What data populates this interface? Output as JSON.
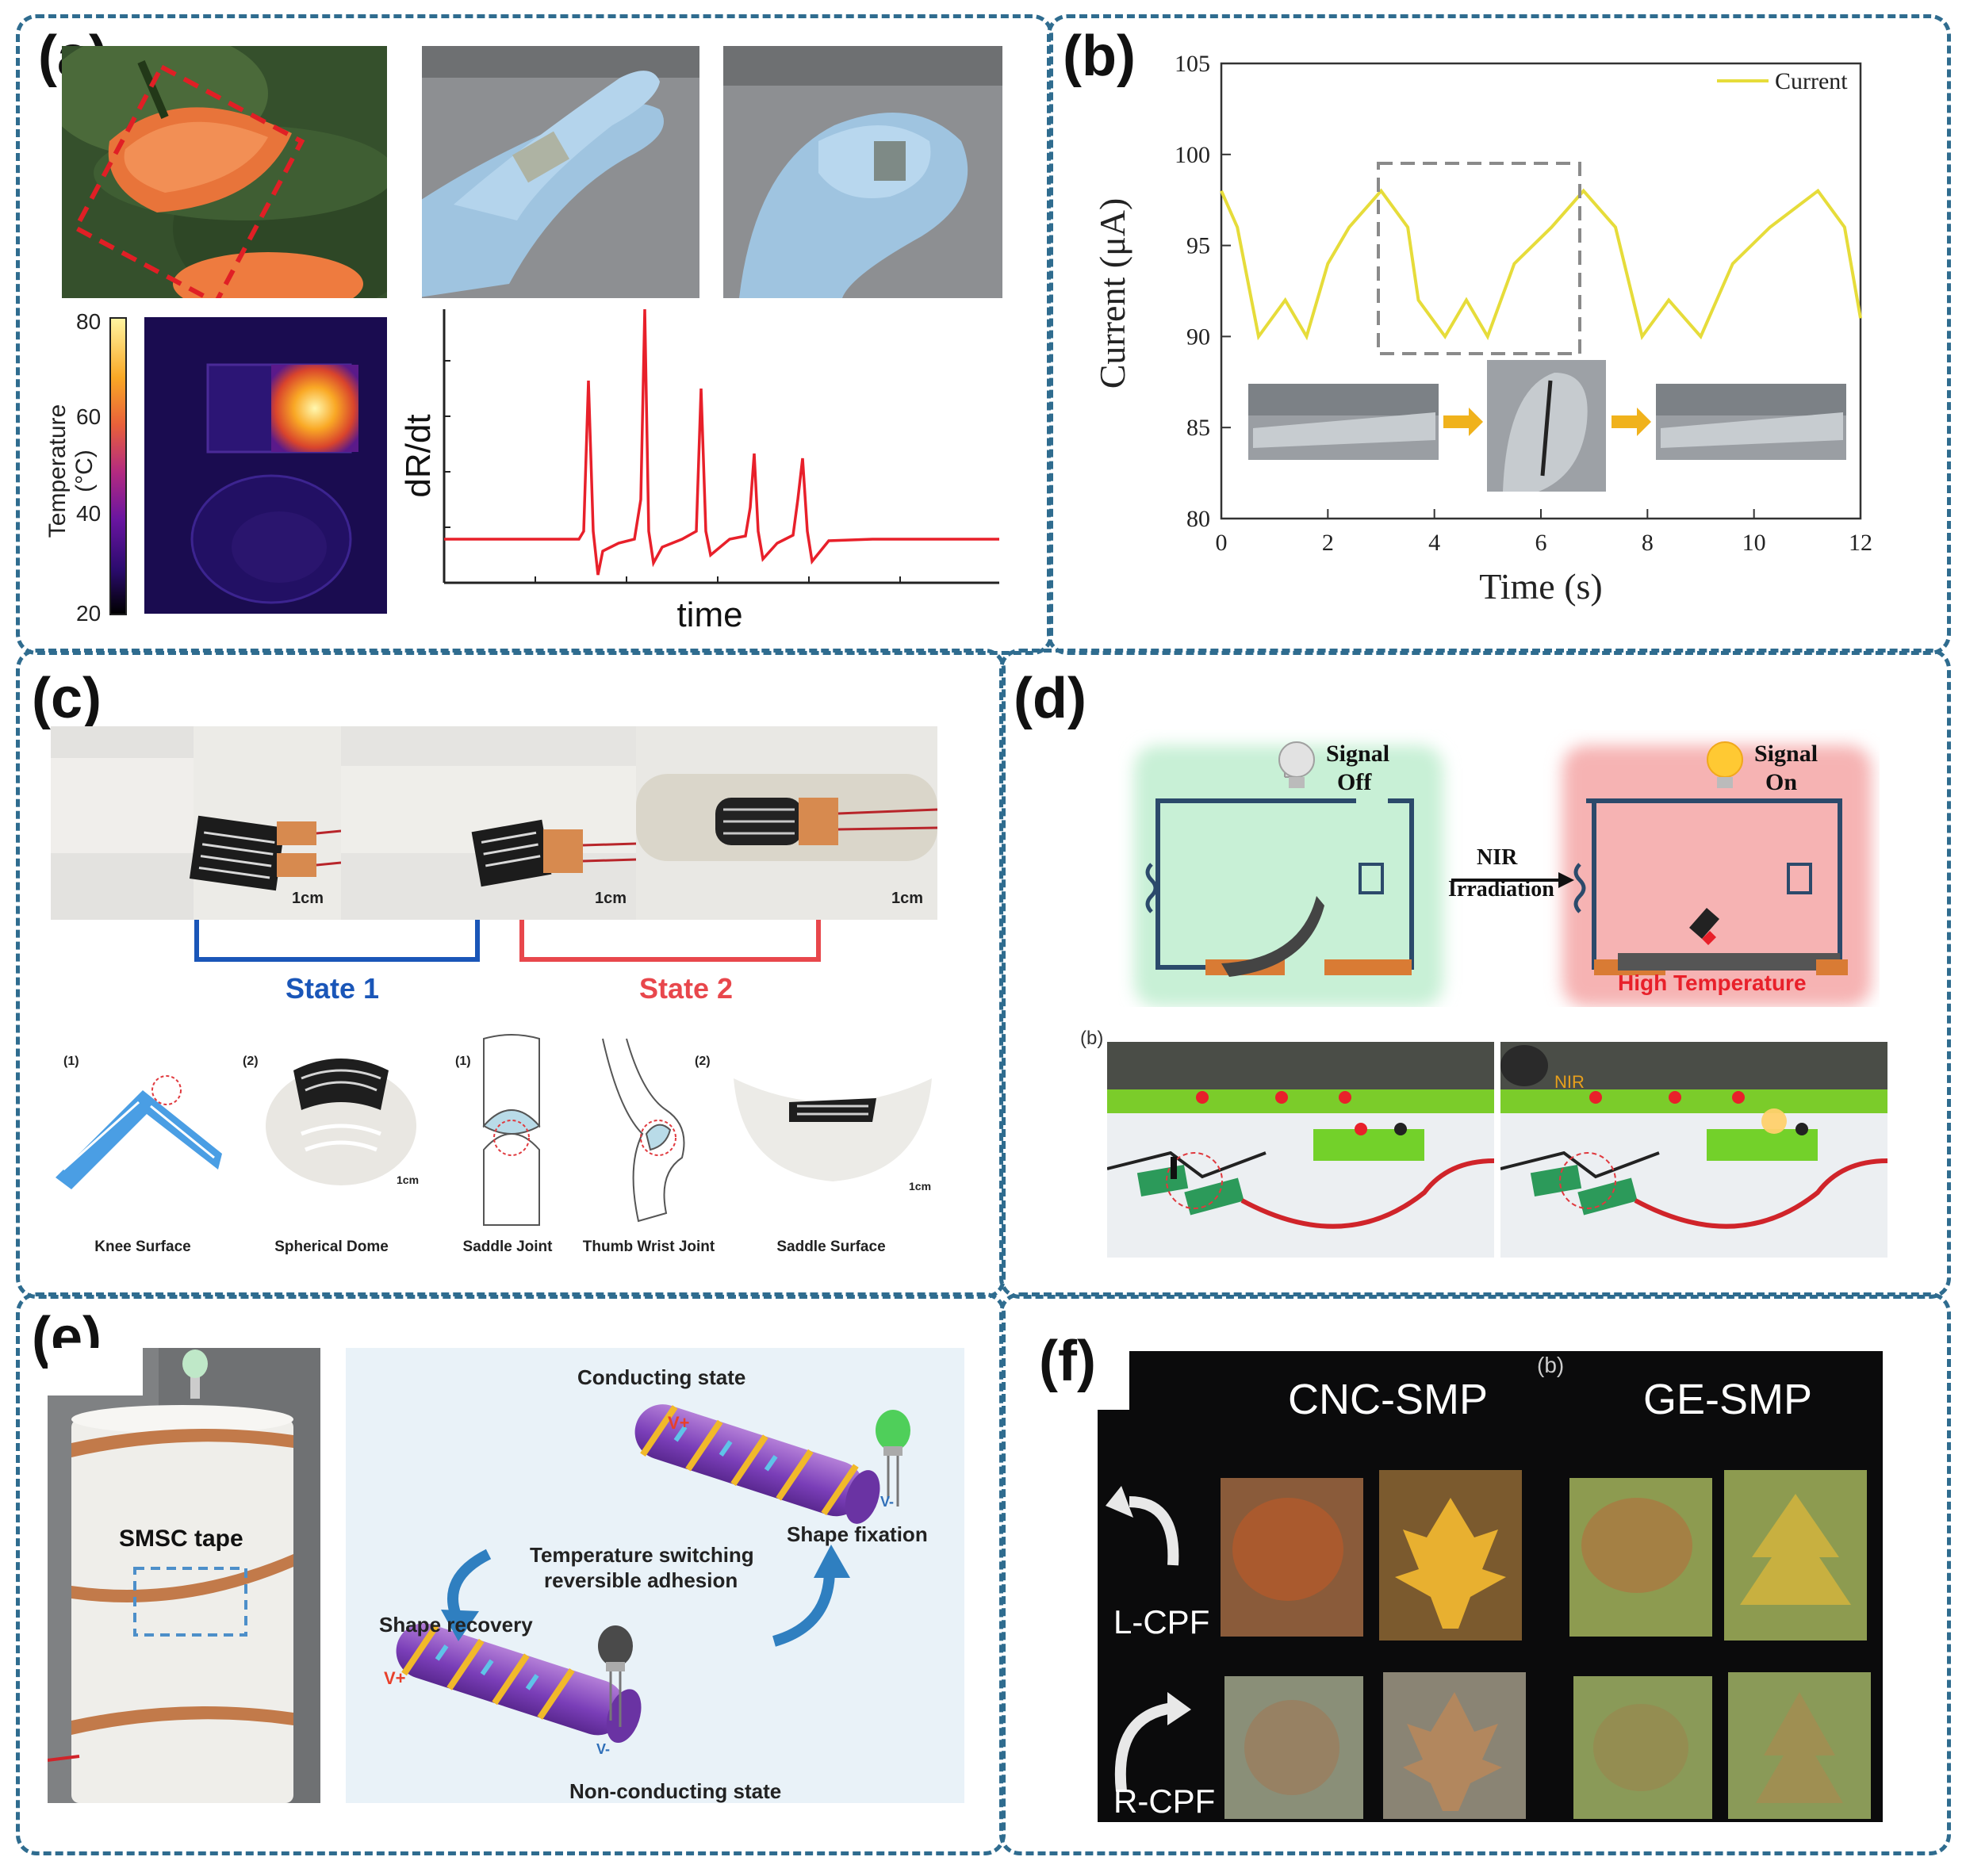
{
  "colors": {
    "border": "#2f6c8f",
    "red_signal": "#e8202a",
    "yellow_line": "#e6dc3a",
    "state1": "#1a56b8",
    "state2": "#e8474c"
  },
  "panel_labels": {
    "a": "(a)",
    "b": "(b)",
    "c": "(c)",
    "d": "(d)",
    "e": "(e)",
    "f": "(f)"
  },
  "panel_a": {
    "colorbar": {
      "title": "Temperature (°C)",
      "ticks": [
        "80",
        "60",
        "40",
        "20"
      ]
    },
    "signal_plot": {
      "ylabel": "dR/dt",
      "xlabel": "time"
    }
  },
  "chart_data": {
    "type": "line",
    "xlabel": "Time (s)",
    "ylabel": "Current (μA)",
    "xlim": [
      0,
      12
    ],
    "ylim": [
      80,
      105
    ],
    "xticks": [
      "0",
      "2",
      "4",
      "6",
      "8",
      "10",
      "12"
    ],
    "yticks": [
      "80",
      "85",
      "90",
      "95",
      "100",
      "105"
    ],
    "legend_position": "top-right",
    "series": [
      {
        "name": "Current",
        "x": [
          0,
          0.3,
          0.7,
          1.2,
          1.6,
          2.0,
          2.4,
          3.0,
          3.5,
          3.7,
          4.2,
          4.6,
          5.0,
          5.5,
          6.2,
          6.8,
          7.4,
          7.9,
          8.4,
          9.0,
          9.6,
          10.3,
          11.2,
          11.7,
          12.0
        ],
        "y": [
          98,
          96,
          90,
          92,
          90,
          94,
          96,
          98,
          96,
          92,
          90,
          92,
          90,
          94,
          96,
          98,
          96,
          90,
          92,
          90,
          94,
          96,
          98,
          96,
          91
        ]
      }
    ]
  },
  "panel_c": {
    "scale_bar": "1cm",
    "state1": "State 1",
    "state2": "State 2",
    "captions": [
      "Knee Surface",
      "Spherical Dome",
      "Saddle Joint",
      "Thumb Wrist Joint",
      "Saddle Surface"
    ],
    "subnums": [
      "(1)",
      "(2)",
      "(1)",
      "(2)"
    ]
  },
  "panel_d": {
    "signal_off": [
      "Signal",
      "Off"
    ],
    "signal_on": [
      "Signal",
      "On"
    ],
    "arrow_text": [
      "NIR",
      "Irradiation"
    ],
    "high_temp": "High Temperature",
    "sub_label": "(b)",
    "nir_photo_label": "NIR"
  },
  "panel_e": {
    "tape_label": "SMSC tape",
    "conducting": "Conducting state",
    "shape_fixation": "Shape fixation",
    "switching": [
      "Temperature switching",
      "reversible adhesion"
    ],
    "shape_recovery": "Shape recovery",
    "non_conducting": "Non-conducting state",
    "v_plus": "V+",
    "v_minus": "V-"
  },
  "panel_f": {
    "sub_label": "(b)",
    "col1": "CNC-SMP",
    "col2": "GE-SMP",
    "row1": "L-CPF",
    "row2": "R-CPF"
  }
}
